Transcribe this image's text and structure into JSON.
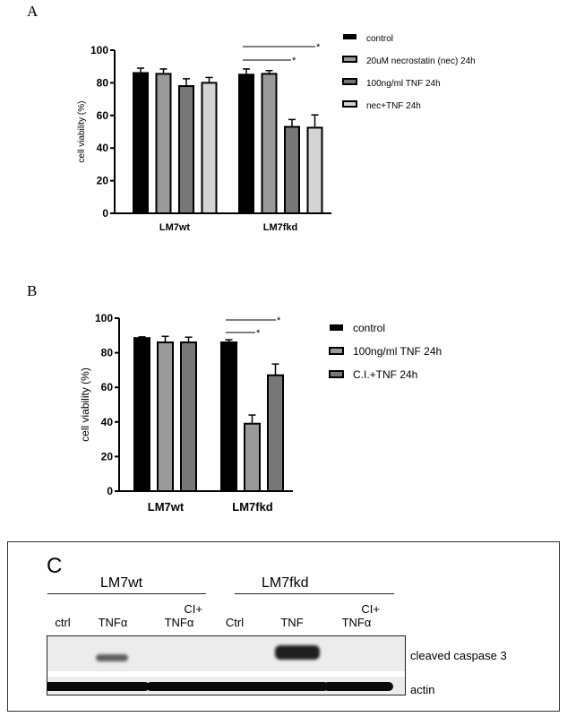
{
  "chart_data": [
    {
      "panel": "A",
      "type": "bar",
      "ylabel": "cell viability (%)",
      "ylim": [
        0,
        100
      ],
      "yticks": [
        0,
        20,
        40,
        60,
        80,
        100
      ],
      "categories": [
        "LM7wt",
        "LM7fkd"
      ],
      "series": [
        {
          "name": "control",
          "color": "#000000",
          "values": [
            86,
            85
          ],
          "errors": [
            3,
            3.5
          ]
        },
        {
          "name": "20uM necrostatin (nec) 24h",
          "color": "#9a9a9a",
          "values": [
            85.5,
            85.5
          ],
          "errors": [
            3,
            2
          ]
        },
        {
          "name": "100ng/ml TNF 24h",
          "color": "#777777",
          "values": [
            78,
            53
          ],
          "errors": [
            4.5,
            4.5
          ]
        },
        {
          "name": "nec+TNF 24h",
          "color": "#d4d4d4",
          "values": [
            80,
            52.5
          ],
          "errors": [
            3.3,
            7.8
          ]
        }
      ],
      "significance": [
        {
          "group": "LM7fkd",
          "from": "control",
          "to": "nec+TNF 24h",
          "label": "*"
        },
        {
          "group": "LM7fkd",
          "from": "control",
          "to": "100ng/ml TNF 24h",
          "label": "*"
        }
      ]
    },
    {
      "panel": "B",
      "type": "bar",
      "ylabel": "cell viability (%)",
      "ylim": [
        0,
        100
      ],
      "yticks": [
        0,
        20,
        40,
        60,
        80,
        100
      ],
      "categories": [
        "LM7wt",
        "LM7fkd"
      ],
      "series": [
        {
          "name": "control",
          "color": "#000000",
          "values": [
            88.5,
            86
          ],
          "errors": [
            0.7,
            1.5
          ]
        },
        {
          "name": "100ng/ml TNF 24h",
          "color": "#9a9a9a",
          "values": [
            86,
            39
          ],
          "errors": [
            3.5,
            5
          ]
        },
        {
          "name": "C.I.+TNF 24h",
          "color": "#777777",
          "values": [
            86,
            67
          ],
          "errors": [
            3,
            6.5
          ]
        }
      ],
      "significance": [
        {
          "group": "LM7fkd",
          "from": "control",
          "to": "C.I.+TNF 24h",
          "label": "*"
        },
        {
          "group": "LM7fkd",
          "from": "control",
          "to": "100ng/ml TNF 24h",
          "label": "*"
        }
      ]
    }
  ],
  "panel_labels": {
    "a": "A",
    "b": "B",
    "c": "C"
  },
  "blot": {
    "groups": [
      "LM7wt",
      "LM7fkd"
    ],
    "lanes": [
      {
        "top": "",
        "bottom": "ctrl"
      },
      {
        "top": "",
        "bottom": "TNFα"
      },
      {
        "top": "CI+",
        "bottom": "TNFα"
      },
      {
        "top": "",
        "bottom": "Ctrl"
      },
      {
        "top": "",
        "bottom": "TNF"
      },
      {
        "top": "CI+",
        "bottom": "TNFα"
      }
    ],
    "bands": [
      "cleaved caspase 3",
      "actin"
    ],
    "caspase_intensity": [
      0,
      0.5,
      0,
      0,
      1,
      0
    ]
  }
}
